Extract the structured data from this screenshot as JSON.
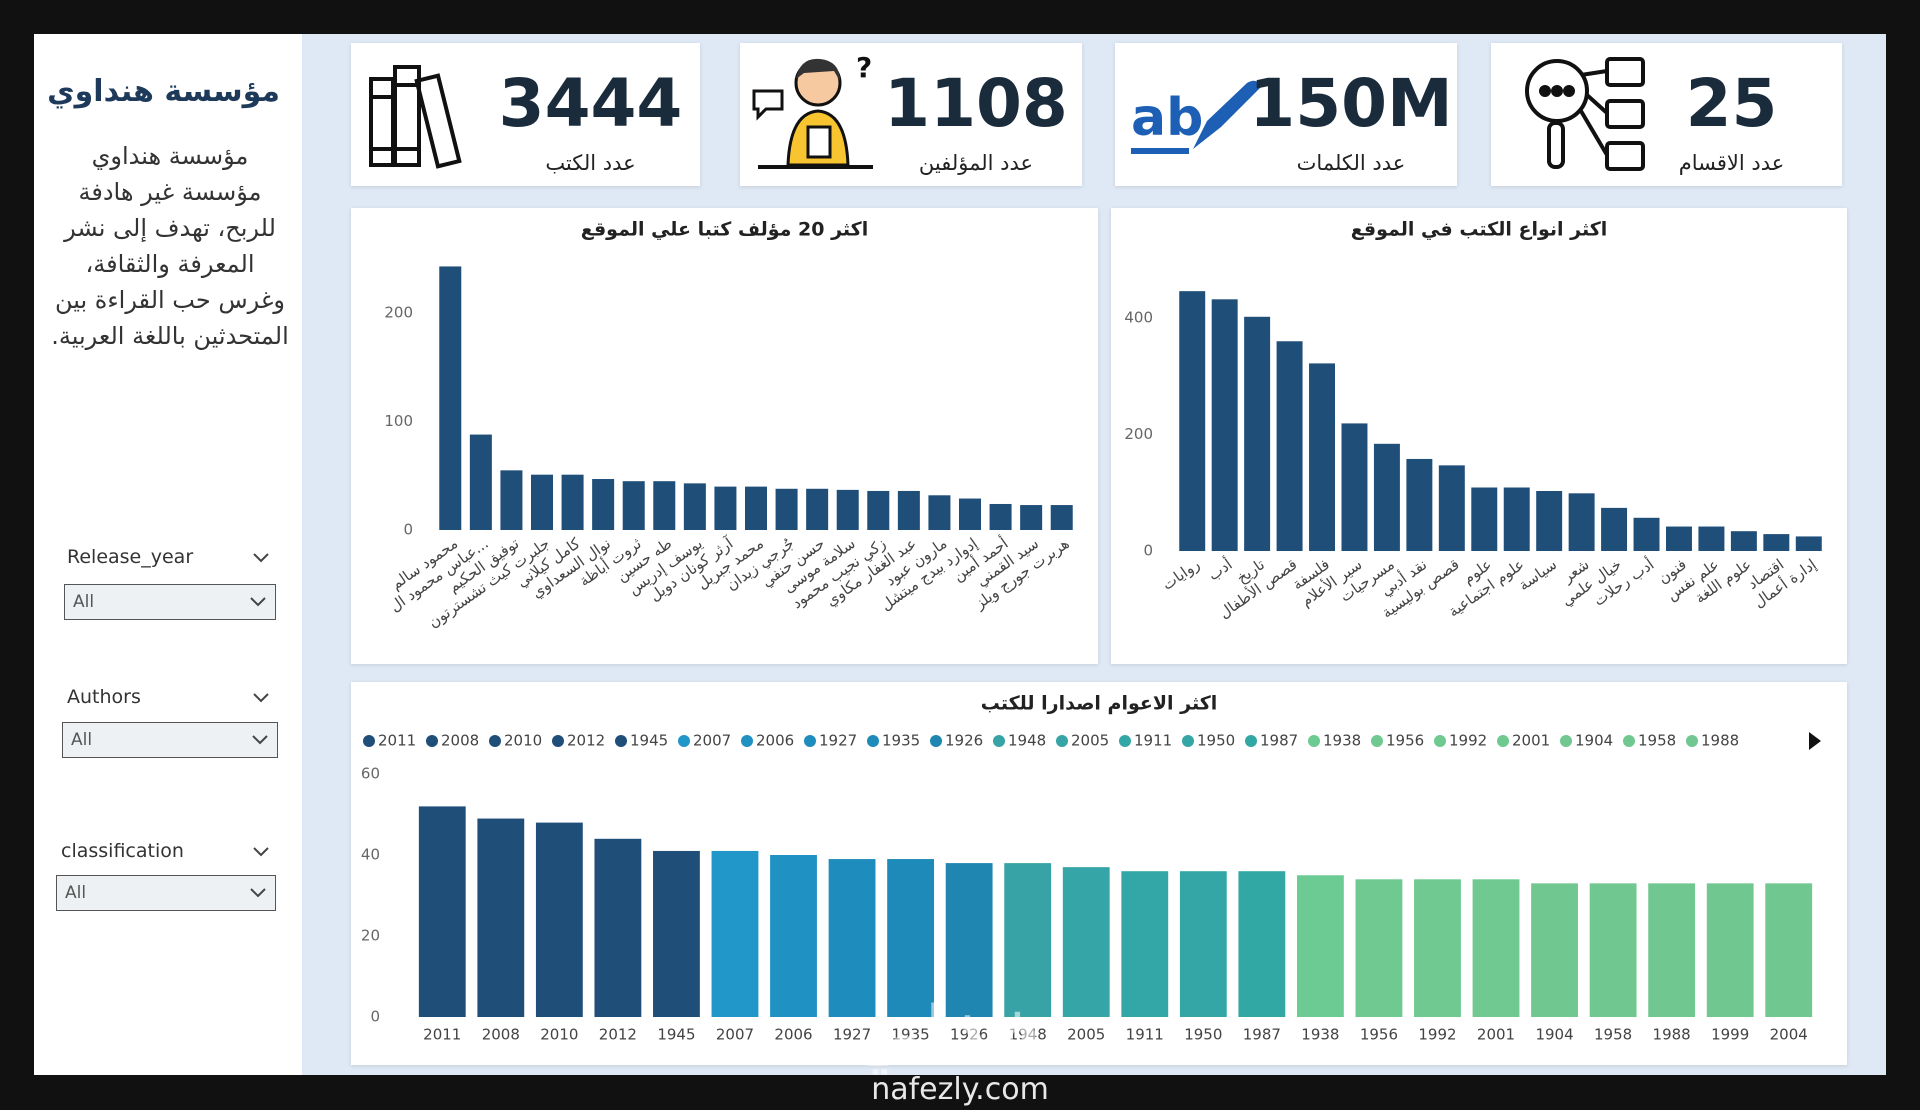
{
  "sidebar": {
    "title": "مؤسسة هنداوي",
    "description": "مؤسسة هنداوي مؤسسة غير هادفة للربح، تهدف إلى نشر المعرفة والثقافة، وغرس حب القراءة بين المتحدثين باللغة العربية."
  },
  "slicers": [
    {
      "label": "Release_year",
      "value": "All"
    },
    {
      "label": "Authors",
      "value": "All"
    },
    {
      "label": "classification",
      "value": "All"
    }
  ],
  "kpis": [
    {
      "value": "3444",
      "label": "عدد الكتب"
    },
    {
      "value": "1108",
      "label": "عدد المؤلفين"
    },
    {
      "value": "150M",
      "label": "عدد الكلمات"
    },
    {
      "value": "25",
      "label": "عدد الاقسام"
    }
  ],
  "chart_data": [
    {
      "type": "bar",
      "title": "اكثر 20 مؤلف كتبا علي الموقع",
      "categories": [
        "محمود سالم",
        "عباس محمود ال...",
        "توفيق الحكيم",
        "جلبرت كيث تشسترتون",
        "كامل كيلاني",
        "نوال السعداوي",
        "ثروت أباظة",
        "طه حسين",
        "يوسف إدريس",
        "آرثر كونان دويل",
        "محمد جبريل",
        "جُرجي زيدان",
        "حسن حنفي",
        "سلامة موسى",
        "زكي نجيب محمود",
        "عبد الغفار مكاوي",
        "مارون عبود",
        "إدوارد بيدج ميتشل",
        "أحمد أمين",
        "سيد القمني",
        "هربرت جورج ويلز"
      ],
      "values": [
        243,
        88,
        55,
        51,
        51,
        47,
        45,
        45,
        43,
        40,
        40,
        38,
        38,
        37,
        36,
        36,
        32,
        29,
        24,
        23,
        23
      ],
      "color": "#1f4e79",
      "ylim": [
        0,
        260
      ],
      "yticks": [
        0,
        100,
        200
      ],
      "grid": false
    },
    {
      "type": "bar",
      "title": "اكثر انواع الكتب في الموقع",
      "categories": [
        "روايات",
        "أدب",
        "تاريخ",
        "قصص الأطفال",
        "فلسفة",
        "سير الأعلام",
        "مسرحيات",
        "نقد أدبي",
        "قصص بوليسية",
        "علوم",
        "علوم اجتماعية",
        "سياسة",
        "شعر",
        "خيال علمي",
        "أدب رحلات",
        "فنون",
        "علم نفس",
        "علوم اللغة",
        "اقتصاد",
        "إدارة أعمال"
      ],
      "values": [
        446,
        432,
        402,
        360,
        322,
        219,
        184,
        158,
        147,
        109,
        109,
        103,
        99,
        74,
        57,
        42,
        42,
        34,
        29,
        25
      ],
      "color": "#1f4e79",
      "ylim": [
        0,
        460
      ],
      "yticks": [
        0,
        200,
        400
      ],
      "grid": false
    },
    {
      "type": "bar",
      "title": "اكثر الاعوام اصدارا للكتب",
      "categories": [
        "2011",
        "2008",
        "2010",
        "2012",
        "1945",
        "2007",
        "2006",
        "1927",
        "1935",
        "1926",
        "1948",
        "2005",
        "1911",
        "1950",
        "1987",
        "1938",
        "1956",
        "1992",
        "2001",
        "1904",
        "1958",
        "1988",
        "1999",
        "2004"
      ],
      "values": [
        52,
        49,
        48,
        44,
        41,
        41,
        40,
        39,
        39,
        38,
        38,
        37,
        36,
        36,
        36,
        35,
        34,
        34,
        34,
        33,
        33,
        33,
        33,
        33
      ],
      "colors": [
        "#1f4e79",
        "#1f4e79",
        "#1f4e79",
        "#1f4e79",
        "#1f4e79",
        "#2196c9",
        "#1f91c3",
        "#1e8dbe",
        "#1e8aba",
        "#1f86b2",
        "#38a3a6",
        "#35a5a8",
        "#33a6a7",
        "#33a6a5",
        "#31a8a4",
        "#6ccb92",
        "#6fc990",
        "#6fc990",
        "#6fc990",
        "#70c890",
        "#70c890",
        "#70c890",
        "#70c890",
        "#70c890"
      ],
      "legend": true,
      "ylim": [
        0,
        60
      ],
      "yticks": [
        0,
        20,
        40,
        60
      ],
      "grid": false
    }
  ],
  "watermark": [
    "نفذلي",
    "nafezly.com"
  ]
}
